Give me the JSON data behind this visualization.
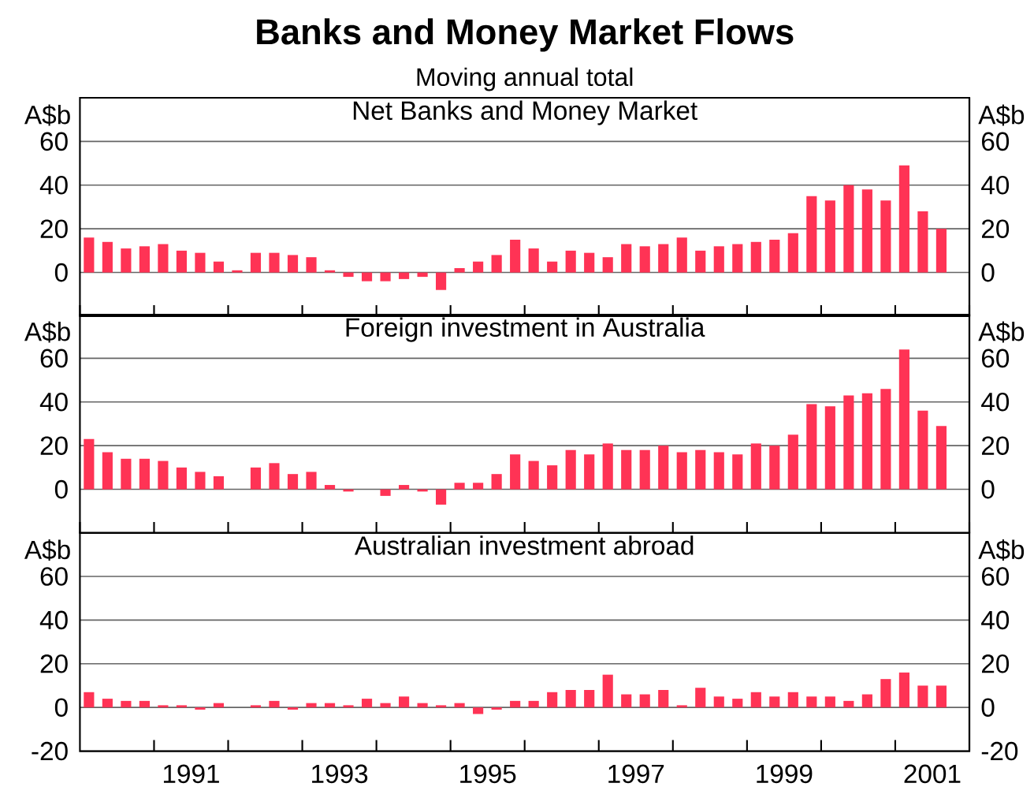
{
  "chart_data": [
    {
      "type": "bar",
      "title": "Net Banks and Money Market",
      "ylabel": "A$b",
      "y2label": "A$b",
      "annotations": [
        "Banks and Money Market Flows",
        "Moving annual total"
      ],
      "x": [
        "1990-02-15",
        "1990-05-15",
        "1990-08-15",
        "1990-11-15",
        "1991-02-15",
        "1991-05-15",
        "1991-08-15",
        "1991-11-15",
        "1992-02-15",
        "1992-05-15",
        "1992-08-15",
        "1992-11-15",
        "1993-02-15",
        "1993-05-15",
        "1993-08-15",
        "1993-11-15",
        "1994-02-15",
        "1994-05-15",
        "1994-08-15",
        "1994-11-15",
        "1995-02-15",
        "1995-05-15",
        "1995-08-15",
        "1995-11-15",
        "1996-02-15",
        "1996-05-15",
        "1996-08-15",
        "1996-11-15",
        "1997-02-15",
        "1997-05-15",
        "1997-08-15",
        "1997-11-15",
        "1998-02-15",
        "1998-05-15",
        "1998-08-15",
        "1998-11-15",
        "1999-02-15",
        "1999-05-15",
        "1999-08-15",
        "1999-11-15",
        "2000-02-15",
        "2000-05-15",
        "2000-08-15",
        "2000-11-15",
        "2001-02-15",
        "2001-05-15",
        "2001-08-15"
      ],
      "values": [
        16,
        14,
        11,
        12,
        13,
        10,
        9,
        5,
        1,
        9,
        9,
        8,
        7,
        1,
        -2,
        -4,
        -4,
        -3,
        -2,
        -8,
        2,
        5,
        8,
        15,
        11,
        5,
        10,
        9,
        7,
        13,
        12,
        13,
        16,
        10,
        12,
        13,
        14,
        15,
        18,
        35,
        33,
        40,
        38,
        33,
        49,
        28,
        20
      ],
      "color": "#ff3355",
      "xlim": [
        "1990",
        "2002"
      ],
      "ylim": [
        -20,
        80
      ],
      "yticks": [
        0,
        20,
        40,
        60
      ],
      "y2lim": [
        -20,
        80
      ],
      "y2ticks": [
        0,
        20,
        40,
        60
      ],
      "grid": "y",
      "tick_labels": "y"
    },
    {
      "type": "bar",
      "title": "Foreign investment in Australia",
      "ylabel": "A$b",
      "y2label": "A$b",
      "x": [
        "1990-02-15",
        "1990-05-15",
        "1990-08-15",
        "1990-11-15",
        "1991-02-15",
        "1991-05-15",
        "1991-08-15",
        "1991-11-15",
        "1992-02-15",
        "1992-05-15",
        "1992-08-15",
        "1992-11-15",
        "1993-02-15",
        "1993-05-15",
        "1993-08-15",
        "1993-11-15",
        "1994-02-15",
        "1994-05-15",
        "1994-08-15",
        "1994-11-15",
        "1995-02-15",
        "1995-05-15",
        "1995-08-15",
        "1995-11-15",
        "1996-02-15",
        "1996-05-15",
        "1996-08-15",
        "1996-11-15",
        "1997-02-15",
        "1997-05-15",
        "1997-08-15",
        "1997-11-15",
        "1998-02-15",
        "1998-05-15",
        "1998-08-15",
        "1998-11-15",
        "1999-02-15",
        "1999-05-15",
        "1999-08-15",
        "1999-11-15",
        "2000-02-15",
        "2000-05-15",
        "2000-08-15",
        "2000-11-15",
        "2001-02-15",
        "2001-05-15",
        "2001-08-15"
      ],
      "values": [
        23,
        17,
        14,
        14,
        13,
        10,
        8,
        6,
        0,
        10,
        12,
        7,
        8,
        2,
        -1,
        0,
        -3,
        2,
        -1,
        -7,
        3,
        3,
        7,
        16,
        13,
        11,
        18,
        16,
        21,
        18,
        18,
        20,
        17,
        18,
        17,
        16,
        21,
        20,
        25,
        39,
        38,
        43,
        44,
        46,
        64,
        36,
        29
      ],
      "color": "#ff3355",
      "xlim": [
        "1990",
        "2002"
      ],
      "ylim": [
        -20,
        80
      ],
      "yticks": [
        0,
        20,
        40,
        60
      ],
      "y2lim": [
        -20,
        80
      ],
      "y2ticks": [
        0,
        20,
        40,
        60
      ],
      "grid": "y",
      "tick_labels": "y"
    },
    {
      "type": "bar",
      "title": "Australian investment abroad",
      "ylabel": "A$b",
      "y2label": "A$b",
      "x": [
        "1990-02-15",
        "1990-05-15",
        "1990-08-15",
        "1990-11-15",
        "1991-02-15",
        "1991-05-15",
        "1991-08-15",
        "1991-11-15",
        "1992-02-15",
        "1992-05-15",
        "1992-08-15",
        "1992-11-15",
        "1993-02-15",
        "1993-05-15",
        "1993-08-15",
        "1993-11-15",
        "1994-02-15",
        "1994-05-15",
        "1994-08-15",
        "1994-11-15",
        "1995-02-15",
        "1995-05-15",
        "1995-08-15",
        "1995-11-15",
        "1996-02-15",
        "1996-05-15",
        "1996-08-15",
        "1996-11-15",
        "1997-02-15",
        "1997-05-15",
        "1997-08-15",
        "1997-11-15",
        "1998-02-15",
        "1998-05-15",
        "1998-08-15",
        "1998-11-15",
        "1999-02-15",
        "1999-05-15",
        "1999-08-15",
        "1999-11-15",
        "2000-02-15",
        "2000-05-15",
        "2000-08-15",
        "2000-11-15",
        "2001-02-15",
        "2001-05-15",
        "2001-08-15"
      ],
      "values": [
        7,
        4,
        3,
        3,
        1,
        1,
        -1,
        2,
        0,
        1,
        3,
        -1,
        2,
        2,
        1,
        4,
        2,
        5,
        2,
        1,
        2,
        -3,
        -1,
        3,
        3,
        7,
        8,
        8,
        15,
        6,
        6,
        8,
        1,
        9,
        5,
        4,
        7,
        5,
        7,
        5,
        5,
        3,
        6,
        13,
        16,
        10,
        10
      ],
      "color": "#ff3355",
      "xlim": [
        "1990",
        "2002"
      ],
      "ylim": [
        -20,
        80
      ],
      "yticks": [
        -20,
        0,
        20,
        40,
        60
      ],
      "y2lim": [
        -20,
        80
      ],
      "y2ticks": [
        -20,
        0,
        20,
        40,
        60
      ],
      "grid": "y",
      "xticks": [
        {
          "value": "1991",
          "label": null
        },
        {
          "value": "1992",
          "label": null
        },
        {
          "value": "1993",
          "label": null
        },
        {
          "value": "1994",
          "label": null
        },
        {
          "value": "1995",
          "label": null
        },
        {
          "value": "1996",
          "label": null
        },
        {
          "value": "1997",
          "label": null
        },
        {
          "value": "1998",
          "label": null
        },
        {
          "value": "1999",
          "label": null
        },
        {
          "value": "2000",
          "label": null
        },
        {
          "value": "2001",
          "label": null
        },
        {
          "value": "1991-07-01",
          "label": "1991"
        },
        {
          "value": "1993-07-01",
          "label": "1993"
        },
        {
          "value": "1995-07-01",
          "label": "1995"
        },
        {
          "value": "1997-07-01",
          "label": "1997"
        },
        {
          "value": "1999-07-01",
          "label": "1999"
        },
        {
          "value": "2001-07-01",
          "label": "2001"
        }
      ]
    }
  ]
}
